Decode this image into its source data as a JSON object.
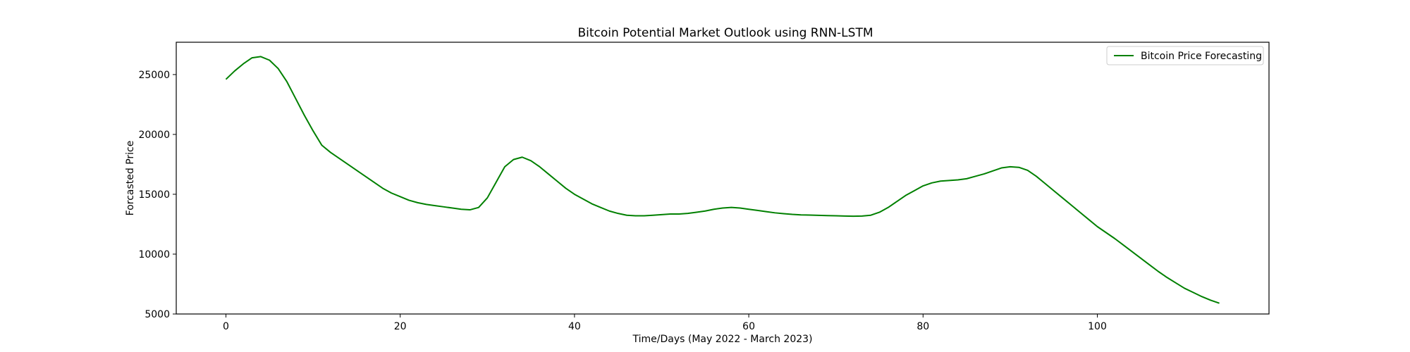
{
  "chart_data": {
    "type": "line",
    "title": "Bitcoin Potential Market Outlook using RNN-LSTM",
    "xlabel": "Time/Days (May 2022 - March 2023)",
    "ylabel": "Forcasted Price",
    "xlim": [
      -5.7,
      119.7
    ],
    "ylim": [
      5000,
      27700
    ],
    "xticks": [
      0,
      20,
      40,
      60,
      80,
      100
    ],
    "yticks": [
      5000,
      10000,
      15000,
      20000,
      25000
    ],
    "grid": false,
    "legend_position": "top-right",
    "series": [
      {
        "name": "Bitcoin Price Forecasting",
        "color": "#008000",
        "x": [
          0,
          1,
          2,
          3,
          4,
          5,
          6,
          7,
          8,
          9,
          10,
          11,
          12,
          13,
          14,
          15,
          16,
          17,
          18,
          19,
          20,
          21,
          22,
          23,
          24,
          25,
          26,
          27,
          28,
          29,
          30,
          31,
          32,
          33,
          34,
          35,
          36,
          37,
          38,
          39,
          40,
          41,
          42,
          43,
          44,
          45,
          46,
          47,
          48,
          49,
          50,
          51,
          52,
          53,
          54,
          55,
          56,
          57,
          58,
          59,
          60,
          61,
          62,
          63,
          64,
          65,
          66,
          67,
          68,
          69,
          70,
          71,
          72,
          73,
          74,
          75,
          76,
          77,
          78,
          79,
          80,
          81,
          82,
          83,
          84,
          85,
          86,
          87,
          88,
          89,
          90,
          91,
          92,
          93,
          94,
          95,
          96,
          97,
          98,
          99,
          100,
          101,
          102,
          103,
          104,
          105,
          106,
          107,
          108,
          109,
          110,
          111,
          112,
          113,
          114
        ],
        "y": [
          24600,
          25300,
          25900,
          26400,
          26500,
          26200,
          25500,
          24400,
          23000,
          21600,
          20300,
          19100,
          18500,
          18000,
          17500,
          17000,
          16500,
          16000,
          15500,
          15100,
          14800,
          14500,
          14300,
          14150,
          14050,
          13950,
          13850,
          13750,
          13700,
          13900,
          14700,
          16000,
          17300,
          17900,
          18100,
          17800,
          17300,
          16700,
          16100,
          15500,
          15000,
          14600,
          14200,
          13900,
          13600,
          13400,
          13250,
          13200,
          13200,
          13250,
          13300,
          13350,
          13350,
          13400,
          13500,
          13600,
          13750,
          13850,
          13900,
          13850,
          13750,
          13650,
          13550,
          13450,
          13380,
          13320,
          13280,
          13260,
          13240,
          13220,
          13200,
          13180,
          13170,
          13180,
          13250,
          13500,
          13900,
          14400,
          14900,
          15300,
          15700,
          15950,
          16100,
          16150,
          16200,
          16300,
          16500,
          16700,
          16950,
          17200,
          17300,
          17250,
          17000,
          16500,
          15900,
          15300,
          14700,
          14100,
          13500,
          12900,
          12300,
          11800,
          11300,
          10750,
          10200,
          9650,
          9100,
          8550,
          8050,
          7600,
          7150,
          6800,
          6450,
          6150,
          5900
        ]
      }
    ]
  }
}
